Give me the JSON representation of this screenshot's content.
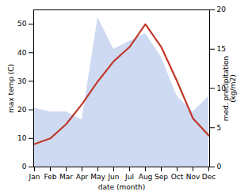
{
  "chart_data": {
    "type": "line",
    "xlabel": "date (month)",
    "ylabel": "max temp (C)",
    "y2label": "med. precipitation\n(kg/m2)",
    "categories": [
      "Jan",
      "Feb",
      "Mar",
      "Apr",
      "May",
      "Jun",
      "Jul",
      "Aug",
      "Sep",
      "Oct",
      "Nov",
      "Dec"
    ],
    "series": [
      {
        "type": "area",
        "axis": "y2",
        "color": "#c5d4f0",
        "values": [
          7.5,
          7,
          7,
          6,
          19,
          15,
          16,
          17,
          14,
          9,
          7,
          9
        ]
      },
      {
        "type": "line",
        "color": "#c0392b",
        "values": [
          8,
          10,
          15,
          22,
          30,
          37,
          42,
          50,
          42,
          30,
          17,
          11
        ]
      }
    ],
    "ylim": [
      0,
      55
    ],
    "yticks": [
      0,
      10,
      20,
      30,
      40,
      50
    ],
    "y2lim": [
      0,
      20
    ],
    "y2ticks": [
      0,
      5,
      10,
      15,
      20
    ]
  }
}
